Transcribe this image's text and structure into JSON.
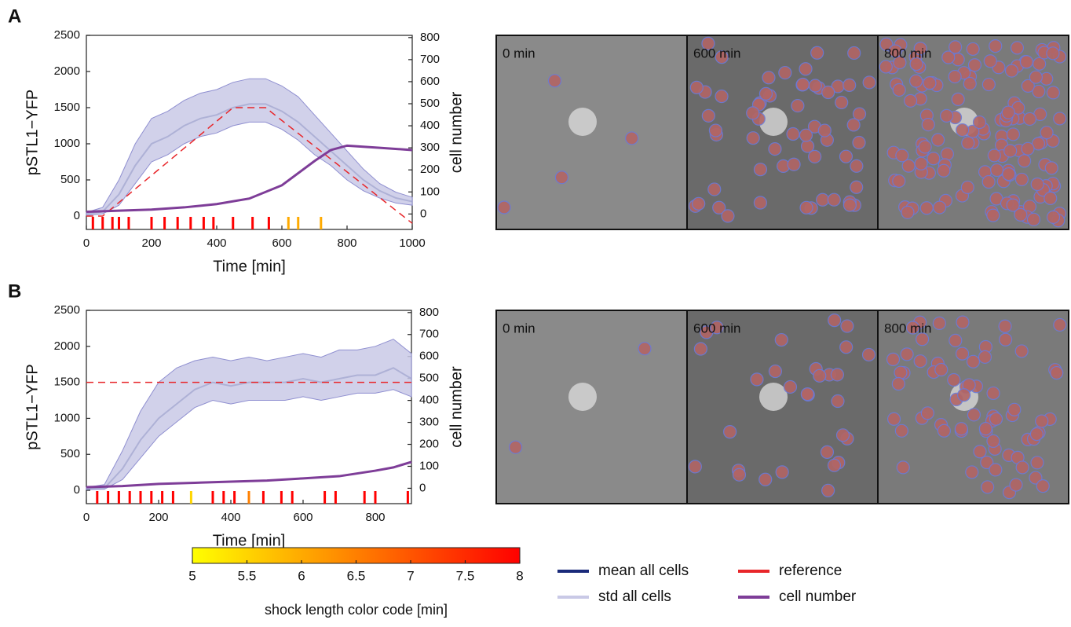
{
  "chart_data": [
    {
      "type": "line",
      "panel": "A",
      "xlabel": "Time [min]",
      "ylabel": "pSTL1−YFP",
      "y2label": "cell number",
      "xlim": [
        0,
        1000
      ],
      "xticks": [
        0,
        200,
        400,
        600,
        800,
        1000
      ],
      "ylim": [
        -185,
        2500
      ],
      "yticks": [
        0,
        500,
        1000,
        1500,
        2000,
        2500
      ],
      "y2lim": [
        -70,
        810
      ],
      "y2ticks": [
        0,
        100,
        200,
        300,
        400,
        500,
        600,
        700,
        800
      ],
      "x": [
        0,
        50,
        100,
        150,
        200,
        250,
        300,
        350,
        400,
        450,
        500,
        550,
        600,
        650,
        700,
        750,
        800,
        850,
        900,
        950,
        1000
      ],
      "series": [
        {
          "name": "mean all cells",
          "color": "#1a2a7a",
          "values": [
            30,
            60,
            300,
            700,
            1000,
            1100,
            1250,
            1350,
            1400,
            1500,
            1550,
            1550,
            1450,
            1300,
            1100,
            900,
            700,
            500,
            350,
            250,
            200
          ]
        },
        {
          "name": "std all cells",
          "color": "#c9c9e6",
          "kind": "band",
          "lower": [
            10,
            30,
            150,
            450,
            750,
            850,
            1000,
            1100,
            1150,
            1250,
            1300,
            1300,
            1200,
            1050,
            850,
            700,
            500,
            350,
            250,
            180,
            150
          ],
          "upper": [
            50,
            120,
            500,
            1000,
            1350,
            1450,
            1600,
            1700,
            1750,
            1850,
            1900,
            1900,
            1800,
            1650,
            1400,
            1150,
            900,
            650,
            450,
            330,
            260
          ]
        },
        {
          "name": "reference",
          "color": "#e8262a",
          "dashed": true,
          "x": [
            0,
            50,
            450,
            550,
            1000
          ],
          "values": [
            0,
            0,
            1500,
            1500,
            -100
          ]
        },
        {
          "name": "cell number",
          "color": "#7e3d98",
          "axis": "y2",
          "x": [
            0,
            100,
            200,
            300,
            400,
            500,
            600,
            700,
            750,
            800,
            900,
            1000
          ],
          "values": [
            10,
            15,
            20,
            30,
            45,
            70,
            130,
            240,
            290,
            310,
            300,
            290
          ]
        }
      ],
      "shocks": {
        "x": [
          20,
          50,
          80,
          100,
          130,
          200,
          240,
          280,
          320,
          360,
          390,
          450,
          510,
          560,
          620,
          650,
          720
        ],
        "lengths": [
          8,
          8,
          8,
          8,
          8,
          8,
          8,
          8,
          8,
          8,
          8,
          8,
          8,
          8,
          6,
          6,
          6
        ]
      },
      "images": [
        "0 min",
        "600 min",
        "800 min"
      ]
    },
    {
      "type": "line",
      "panel": "B",
      "xlabel": "Time [min]",
      "ylabel": "pSTL1−YFP",
      "y2label": "cell number",
      "xlim": [
        0,
        900
      ],
      "xticks": [
        0,
        200,
        400,
        600,
        800
      ],
      "ylim": [
        -185,
        2500
      ],
      "yticks": [
        0,
        500,
        1000,
        1500,
        2000,
        2500
      ],
      "y2lim": [
        -70,
        810
      ],
      "y2ticks": [
        0,
        100,
        200,
        300,
        400,
        500,
        600,
        700,
        800
      ],
      "x": [
        0,
        50,
        100,
        150,
        200,
        250,
        300,
        350,
        400,
        450,
        500,
        550,
        600,
        650,
        700,
        750,
        800,
        850,
        900
      ],
      "series": [
        {
          "color": "#1a2a7a",
          "values": [
            20,
            30,
            300,
            700,
            1000,
            1200,
            1400,
            1500,
            1450,
            1500,
            1500,
            1500,
            1550,
            1500,
            1550,
            1600,
            1600,
            1700,
            1550
          ]
        },
        {
          "color": "#c9c9e6",
          "kind": "band",
          "lower": [
            10,
            15,
            150,
            450,
            750,
            950,
            1150,
            1250,
            1200,
            1250,
            1250,
            1250,
            1300,
            1250,
            1300,
            1350,
            1350,
            1400,
            1300
          ],
          "upper": [
            40,
            80,
            550,
            1100,
            1500,
            1700,
            1800,
            1850,
            1800,
            1850,
            1800,
            1850,
            1900,
            1850,
            1950,
            1950,
            2000,
            2100,
            1900
          ]
        },
        {
          "color": "#e8262a",
          "dashed": true,
          "x": [
            0,
            900
          ],
          "values": [
            1500,
            1500
          ]
        },
        {
          "color": "#7e3d98",
          "axis": "y2",
          "x": [
            0,
            100,
            200,
            300,
            400,
            500,
            600,
            700,
            800,
            850,
            900
          ],
          "values": [
            5,
            10,
            20,
            25,
            30,
            35,
            45,
            55,
            80,
            95,
            120
          ]
        }
      ],
      "shocks": {
        "x": [
          30,
          60,
          90,
          120,
          150,
          180,
          210,
          240,
          290,
          350,
          380,
          410,
          450,
          490,
          540,
          570,
          660,
          690,
          770,
          800,
          890
        ],
        "lengths": [
          8,
          8,
          8,
          8,
          8,
          8,
          8,
          8,
          5.5,
          8,
          8,
          8,
          6.5,
          8,
          8,
          8,
          8,
          8,
          8,
          8,
          8
        ]
      },
      "images": [
        "0 min",
        "600 min",
        "800 min"
      ]
    }
  ],
  "colorbar": {
    "label": "shock length color code [min]",
    "lim": [
      5,
      8
    ],
    "ticks": [
      5,
      5.5,
      6,
      6.5,
      7,
      7.5,
      8
    ],
    "colors": [
      "#ffff00",
      "#ff0000"
    ]
  }
}
